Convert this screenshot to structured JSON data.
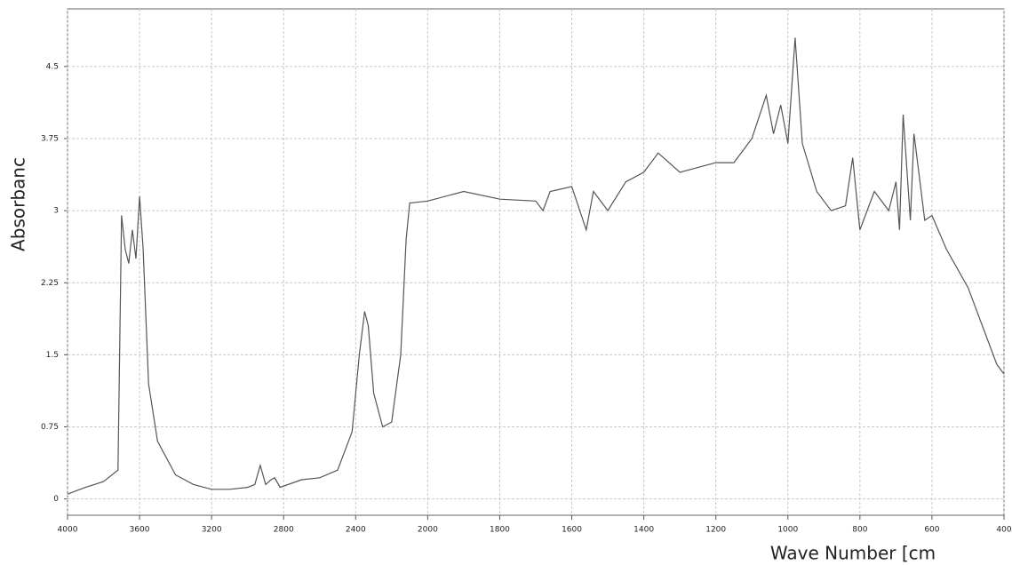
{
  "chart_data": {
    "type": "line",
    "x_label": "Wave Number [cm",
    "y_label": "Absorbanc",
    "x": [
      4000,
      3900,
      3800,
      3720,
      3700,
      3680,
      3660,
      3640,
      3620,
      3600,
      3580,
      3550,
      3500,
      3400,
      3300,
      3200,
      3100,
      3000,
      2960,
      2930,
      2900,
      2870,
      2850,
      2820,
      2700,
      2600,
      2500,
      2420,
      2380,
      2350,
      2330,
      2300,
      2250,
      2200,
      2150,
      2120,
      2100,
      2000,
      1900,
      1800,
      1700,
      1680,
      1660,
      1600,
      1560,
      1540,
      1500,
      1450,
      1400,
      1360,
      1300,
      1200,
      1150,
      1100,
      1060,
      1040,
      1020,
      1000,
      980,
      960,
      920,
      880,
      840,
      820,
      800,
      760,
      720,
      700,
      690,
      680,
      660,
      650,
      620,
      600,
      560,
      500,
      460,
      420,
      400
    ],
    "values": [
      0.05,
      0.12,
      0.18,
      0.3,
      2.95,
      2.6,
      2.45,
      2.8,
      2.5,
      3.15,
      2.6,
      1.2,
      0.6,
      0.25,
      0.15,
      0.1,
      0.1,
      0.12,
      0.15,
      0.35,
      0.15,
      0.2,
      0.22,
      0.12,
      0.2,
      0.22,
      0.3,
      0.7,
      1.5,
      1.95,
      1.8,
      1.1,
      0.75,
      0.8,
      1.5,
      2.7,
      3.08,
      3.1,
      3.2,
      3.12,
      3.1,
      3.0,
      3.2,
      3.25,
      2.8,
      3.2,
      3.0,
      3.3,
      3.4,
      3.6,
      3.4,
      3.5,
      3.5,
      3.75,
      4.2,
      3.8,
      4.1,
      3.7,
      4.8,
      3.7,
      3.2,
      3.0,
      3.05,
      3.55,
      2.8,
      3.2,
      3.0,
      3.3,
      2.8,
      4.0,
      2.9,
      3.8,
      2.9,
      2.95,
      2.6,
      2.2,
      1.8,
      1.4,
      1.3
    ],
    "color": "#555555",
    "xlim": [
      4000,
      400
    ],
    "xticks": [
      4000,
      3600,
      3200,
      2800,
      2400,
      2000,
      1800,
      1600,
      1400,
      1200,
      1000,
      800,
      600,
      400
    ],
    "ylim": [
      -0.17,
      5.1
    ],
    "yticks": [
      0,
      0.75,
      1.5,
      2.25,
      3,
      3.75,
      4.5
    ],
    "grid": true
  }
}
